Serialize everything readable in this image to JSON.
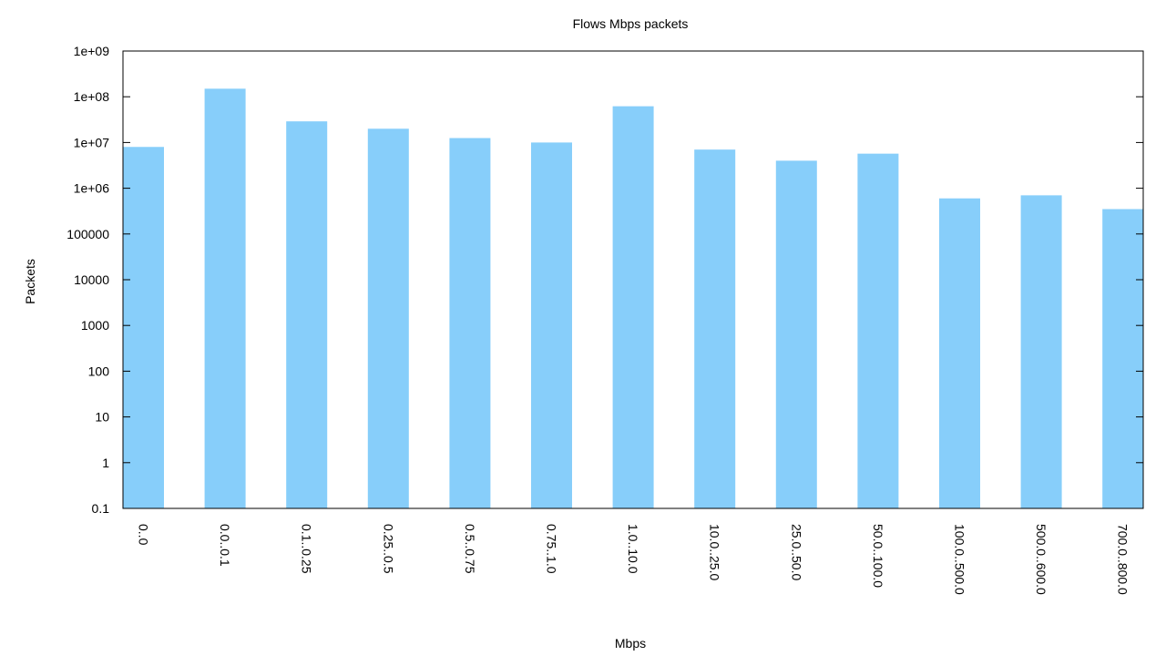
{
  "chart_data": {
    "type": "bar",
    "title": "Flows Mbps packets",
    "xlabel": "Mbps",
    "ylabel": "Packets",
    "y_scale": "log",
    "ylim": [
      0.1,
      1000000000
    ],
    "y_ticks": [
      "0.1",
      "1",
      "10",
      "100",
      "1000",
      "10000",
      "100000",
      "1e+06",
      "1e+07",
      "1e+08",
      "1e+09"
    ],
    "grid": false,
    "bar_color": "#87cefa",
    "categories": [
      "0..0",
      "0.0..0.1",
      "0.1..0.25",
      "0.25..0.5",
      "0.5..0.75",
      "0.75..1.0",
      "1.0..10.0",
      "10.0..25.0",
      "25.0..50.0",
      "50.0..100.0",
      "100.0..500.0",
      "500.0..600.0",
      "700.0..800.0"
    ],
    "values": [
      8000000,
      150000000,
      29000000,
      20000000,
      12500000,
      10000000,
      62000000,
      7000000,
      4000000,
      5700000,
      600000,
      700000,
      350000
    ]
  }
}
